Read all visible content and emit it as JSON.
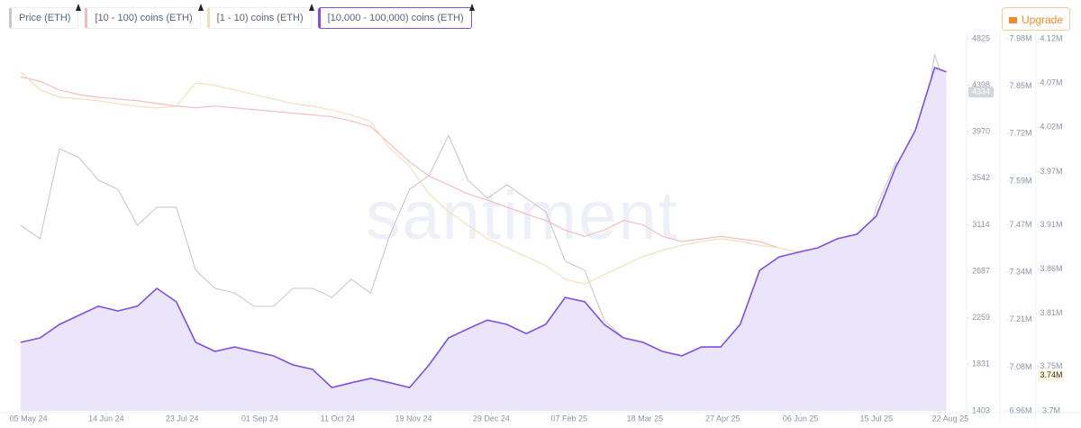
{
  "chart_data": {
    "type": "line",
    "watermark": "santiment",
    "upgrade_button": "Upgrade",
    "x": [
      "2024-05-01",
      "2024-05-11",
      "2024-05-21",
      "2024-05-31",
      "2024-06-10",
      "2024-06-20",
      "2024-06-30",
      "2024-07-10",
      "2024-07-20",
      "2024-07-30",
      "2024-08-09",
      "2024-08-19",
      "2024-08-29",
      "2024-09-08",
      "2024-09-18",
      "2024-09-28",
      "2024-10-08",
      "2024-10-18",
      "2024-10-28",
      "2024-11-07",
      "2024-11-17",
      "2024-11-27",
      "2024-12-07",
      "2024-12-17",
      "2024-12-27",
      "2025-01-06",
      "2025-01-16",
      "2025-01-26",
      "2025-02-05",
      "2025-02-15",
      "2025-02-25",
      "2025-03-07",
      "2025-03-17",
      "2025-03-27",
      "2025-04-06",
      "2025-04-16",
      "2025-04-26",
      "2025-05-06",
      "2025-05-16",
      "2025-05-26",
      "2025-06-05",
      "2025-06-15",
      "2025-06-25",
      "2025-07-05",
      "2025-07-15",
      "2025-07-25",
      "2025-08-04",
      "2025-08-14",
      "2025-08-20"
    ],
    "xlim": [
      "2024-04-25",
      "2025-08-23"
    ],
    "xticks": [
      {
        "value": "2024-05-05",
        "label": "05 May 24"
      },
      {
        "value": "2024-06-14",
        "label": "14 Jun 24"
      },
      {
        "value": "2024-07-23",
        "label": "23 Jul 24"
      },
      {
        "value": "2024-09-01",
        "label": "01 Sep 24"
      },
      {
        "value": "2024-10-11",
        "label": "11 Oct 24"
      },
      {
        "value": "2024-11-19",
        "label": "19 Nov 24"
      },
      {
        "value": "2024-12-29",
        "label": "29 Dec 24"
      },
      {
        "value": "2025-02-07",
        "label": "07 Feb 25"
      },
      {
        "value": "2025-03-18",
        "label": "18 Mar 25"
      },
      {
        "value": "2025-04-27",
        "label": "27 Apr 25"
      },
      {
        "value": "2025-06-06",
        "label": "06 Jun 25"
      },
      {
        "value": "2025-07-15",
        "label": "15 Jul 25"
      },
      {
        "value": "2025-08-22",
        "label": "22 Aug 25"
      }
    ],
    "ylim": [
      1403,
      4825
    ],
    "yticks": [
      1403,
      1831,
      2259,
      2687,
      3114,
      3542,
      3970,
      4398,
      4825
    ],
    "y2lim": [
      6960000,
      7980000
    ],
    "y2ticks": [
      {
        "value": 6960000,
        "label": "6.96M"
      },
      {
        "value": 7080000,
        "label": "7.08M"
      },
      {
        "value": 7210000,
        "label": "7.21M"
      },
      {
        "value": 7340000,
        "label": "7.34M"
      },
      {
        "value": 7470000,
        "label": "7.47M"
      },
      {
        "value": 7590000,
        "label": "7.59M"
      },
      {
        "value": 7720000,
        "label": "7.72M"
      },
      {
        "value": 7850000,
        "label": "7.85M"
      },
      {
        "value": 7980000,
        "label": "7.98M"
      }
    ],
    "y3lim": [
      3700000,
      4120000
    ],
    "y3ticks": [
      {
        "value": 3700000,
        "label": "3.7M"
      },
      {
        "value": 3750000,
        "label": "3.75M"
      },
      {
        "value": 3810000,
        "label": "3.81M"
      },
      {
        "value": 3860000,
        "label": "3.86M"
      },
      {
        "value": 3910000,
        "label": "3.91M"
      },
      {
        "value": 3970000,
        "label": "3.97M"
      },
      {
        "value": 4020000,
        "label": "4.02M"
      },
      {
        "value": 4070000,
        "label": "4.07M"
      },
      {
        "value": 4120000,
        "label": "4.12M"
      }
    ],
    "annotations": [
      {
        "text": "4334"
      },
      {
        "text": "3.74M"
      }
    ],
    "series": [
      {
        "name": "Price (ETH)",
        "color": "#c9c9c9",
        "axis": "y",
        "values": [
          3110,
          2985,
          3814,
          3731,
          3524,
          3441,
          3110,
          3276,
          3276,
          2696,
          2530,
          2488,
          2364,
          2364,
          2530,
          2530,
          2447,
          2613,
          2488,
          3027,
          3441,
          3566,
          3938,
          3524,
          3358,
          3483,
          3358,
          3234,
          2779,
          2696,
          2240,
          2074,
          1991,
          1867,
          1618,
          1660,
          1826,
          2033,
          2530,
          2696,
          2613,
          2530,
          2447,
          2613,
          3276,
          3690,
          3524,
          4684,
          4334
        ]
      },
      {
        "name": "[10 - 100) coins (ETH)",
        "color": "#f3b9bd",
        "axis": "y3",
        "values": [
          4077000,
          4072000,
          4062000,
          4057000,
          4054000,
          4052000,
          4050000,
          4047000,
          4044000,
          4042000,
          4044000,
          4042000,
          4040000,
          4038000,
          4036000,
          4034000,
          4032000,
          4027000,
          4021000,
          4001000,
          3981000,
          3965000,
          3955000,
          3945000,
          3938000,
          3930000,
          3922000,
          3915000,
          3904000,
          3897000,
          3904000,
          3915000,
          3910000,
          3897000,
          3891000,
          3894000,
          3897000,
          3894000,
          3891000,
          3884000,
          3879000,
          3874000,
          3864000,
          3843000,
          3823000,
          3792000,
          3762000,
          3739000,
          3740000
        ]
      },
      {
        "name": "[1 - 10) coins (ETH)",
        "color": "#f6dcb6",
        "axis": "y2",
        "values": [
          7889000,
          7840000,
          7820000,
          7815000,
          7810000,
          7802000,
          7795000,
          7790000,
          7795000,
          7859000,
          7852000,
          7840000,
          7827000,
          7815000,
          7802000,
          7795000,
          7785000,
          7771000,
          7753000,
          7679000,
          7630000,
          7555000,
          7506000,
          7469000,
          7432000,
          7407000,
          7383000,
          7358000,
          7321000,
          7308000,
          7333000,
          7358000,
          7383000,
          7400000,
          7414000,
          7424000,
          7432000,
          7424000,
          7414000,
          7407000,
          7395000,
          7390000,
          7370000,
          7345000,
          7321000,
          7296000,
          7259000,
          7234000,
          7222000
        ]
      },
      {
        "name": "[10,000 - 100,000) coins (ETH)",
        "color": "#7d4fe3",
        "fill": "#ebe5fc",
        "axis": "y2",
        "values": [
          7148000,
          7160000,
          7197000,
          7222000,
          7247000,
          7234000,
          7247000,
          7296000,
          7259000,
          7148000,
          7123000,
          7135000,
          7123000,
          7111000,
          7086000,
          7074000,
          7024000,
          7037000,
          7049000,
          7037000,
          7024000,
          7086000,
          7160000,
          7185000,
          7209000,
          7197000,
          7172000,
          7197000,
          7271000,
          7259000,
          7197000,
          7160000,
          7148000,
          7123000,
          7111000,
          7135000,
          7135000,
          7197000,
          7345000,
          7382000,
          7395000,
          7407000,
          7432000,
          7444000,
          7494000,
          7629000,
          7728000,
          7901000,
          7889000
        ]
      }
    ]
  }
}
